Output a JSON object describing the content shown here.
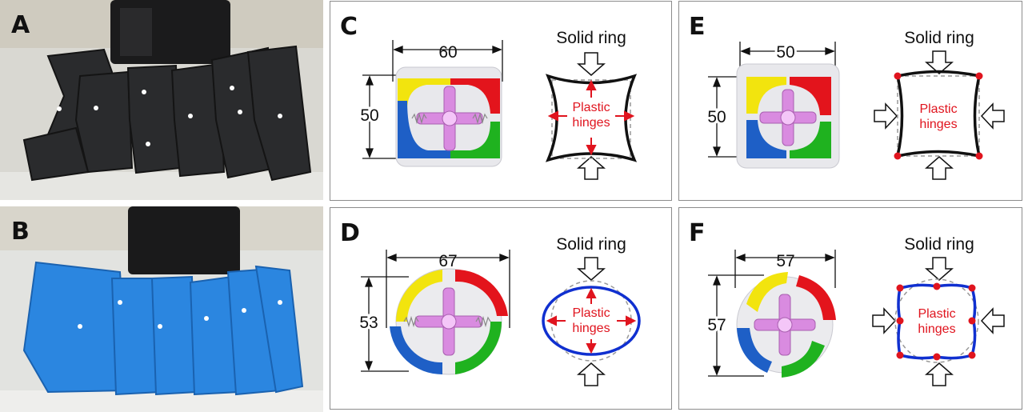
{
  "panels": {
    "A": {
      "label": "A"
    },
    "B": {
      "label": "B"
    },
    "C": {
      "label": "C",
      "width_dim": "60",
      "height_dim": "50",
      "ring_title": "Solid ring",
      "hinge_line1": "Plastic",
      "hinge_line2": "hinges"
    },
    "D": {
      "label": "D",
      "width_dim": "67",
      "height_dim": "53",
      "ring_title": "Solid ring",
      "hinge_line1": "Plastic",
      "hinge_line2": "hinges"
    },
    "E": {
      "label": "E",
      "width_dim": "50",
      "height_dim": "50",
      "ring_title": "Solid ring",
      "hinge_line1": "Plastic",
      "hinge_line2": "hinges"
    },
    "F": {
      "label": "F",
      "width_dim": "57",
      "height_dim": "57",
      "ring_title": "Solid ring",
      "hinge_line1": "Plastic",
      "hinge_line2": "hinges"
    }
  },
  "colors": {
    "black_robot": "#2a2b2d",
    "blue_robot": "#2b86e0",
    "yellow": "#f2e40e",
    "red": "#e3141c",
    "green": "#1fb21f",
    "blue": "#1e5fc6",
    "pink": "#d98be0",
    "hinge_red": "#e0141e",
    "ring_blue": "#1030d0"
  }
}
